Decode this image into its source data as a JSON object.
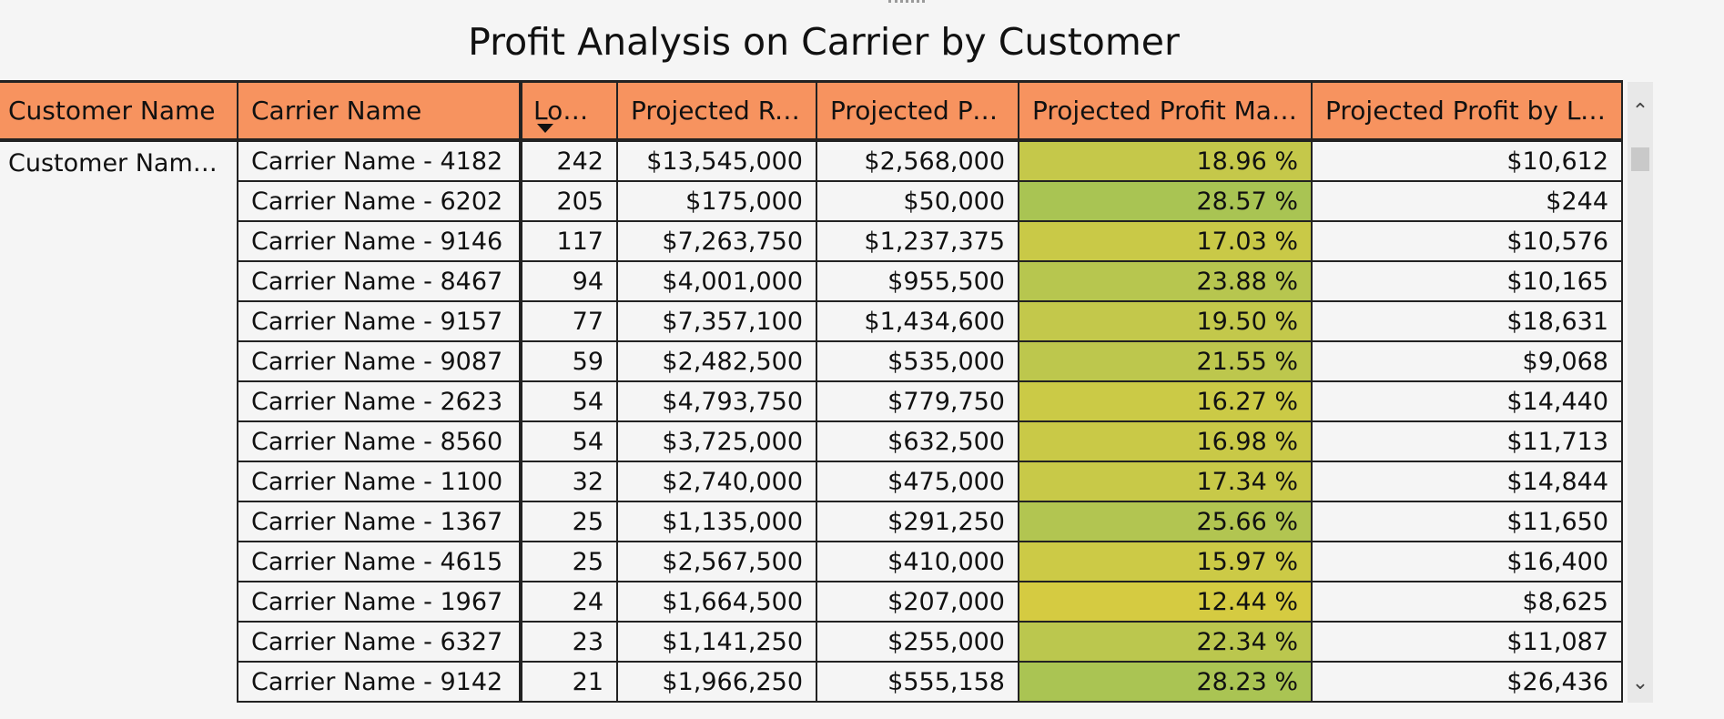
{
  "report": {
    "title": "Profit Analysis on Carrier by Customer"
  },
  "table": {
    "headers": {
      "customer": "Customer Name",
      "carrier": "Carrier Name",
      "loads": "Loads",
      "revenue": "Projected Rev...",
      "profit": "Projected Profit",
      "margin": "Projected Profit Margin",
      "profit_by_loads": "Projected Profit by Loads"
    },
    "customer_value": "Customer Name ...",
    "rows": [
      {
        "carrier": "Carrier Name - 4182",
        "loads": "242",
        "revenue": "$13,545,000",
        "profit": "$2,568,000",
        "margin": "18.96 %",
        "margin_color": "#c5c84a",
        "pbl": "$10,612"
      },
      {
        "carrier": "Carrier Name - 6202",
        "loads": "205",
        "revenue": "$175,000",
        "profit": "$50,000",
        "margin": "28.57 %",
        "margin_color": "#a9c453",
        "pbl": "$244"
      },
      {
        "carrier": "Carrier Name - 9146",
        "loads": "117",
        "revenue": "$7,263,750",
        "profit": "$1,237,375",
        "margin": "17.03 %",
        "margin_color": "#c9c947",
        "pbl": "$10,576"
      },
      {
        "carrier": "Carrier Name - 8467",
        "loads": "94",
        "revenue": "$4,001,000",
        "profit": "$955,500",
        "margin": "23.88 %",
        "margin_color": "#b7c64f",
        "pbl": "$10,165"
      },
      {
        "carrier": "Carrier Name - 9157",
        "loads": "77",
        "revenue": "$7,357,100",
        "profit": "$1,434,600",
        "margin": "19.50 %",
        "margin_color": "#c3c84b",
        "pbl": "$18,631"
      },
      {
        "carrier": "Carrier Name - 9087",
        "loads": "59",
        "revenue": "$2,482,500",
        "profit": "$535,000",
        "margin": "21.55 %",
        "margin_color": "#bdc74d",
        "pbl": "$9,068"
      },
      {
        "carrier": "Carrier Name - 2623",
        "loads": "54",
        "revenue": "$4,793,750",
        "profit": "$779,750",
        "margin": "16.27 %",
        "margin_color": "#cbca46",
        "pbl": "$14,440"
      },
      {
        "carrier": "Carrier Name - 8560",
        "loads": "54",
        "revenue": "$3,725,000",
        "profit": "$632,500",
        "margin": "16.98 %",
        "margin_color": "#c9c947",
        "pbl": "$11,713"
      },
      {
        "carrier": "Carrier Name - 1100",
        "loads": "32",
        "revenue": "$2,740,000",
        "profit": "$475,000",
        "margin": "17.34 %",
        "margin_color": "#c8c948",
        "pbl": "$14,844"
      },
      {
        "carrier": "Carrier Name - 1367",
        "loads": "25",
        "revenue": "$1,135,000",
        "profit": "$291,250",
        "margin": "25.66 %",
        "margin_color": "#b2c551",
        "pbl": "$11,650"
      },
      {
        "carrier": "Carrier Name - 4615",
        "loads": "25",
        "revenue": "$2,567,500",
        "profit": "$410,000",
        "margin": "15.97 %",
        "margin_color": "#ccca46",
        "pbl": "$16,400"
      },
      {
        "carrier": "Carrier Name - 1967",
        "loads": "24",
        "revenue": "$1,664,500",
        "profit": "$207,000",
        "margin": "12.44 %",
        "margin_color": "#d5cb41",
        "pbl": "$8,625"
      },
      {
        "carrier": "Carrier Name - 6327",
        "loads": "23",
        "revenue": "$1,141,250",
        "profit": "$255,000",
        "margin": "22.34 %",
        "margin_color": "#bbc74e",
        "pbl": "$11,087"
      },
      {
        "carrier": "Carrier Name - 9142",
        "loads": "21",
        "revenue": "$1,966,250",
        "profit": "$555,158",
        "margin": "28.23 %",
        "margin_color": "#aac453",
        "pbl": "$26,436"
      }
    ]
  },
  "colors": {
    "header_bg": "#f7935f",
    "border": "#222222"
  },
  "icons": {
    "sort": "sort-descending-icon",
    "scroll_up": "chevron-up-icon",
    "scroll_down": "chevron-down-icon"
  }
}
